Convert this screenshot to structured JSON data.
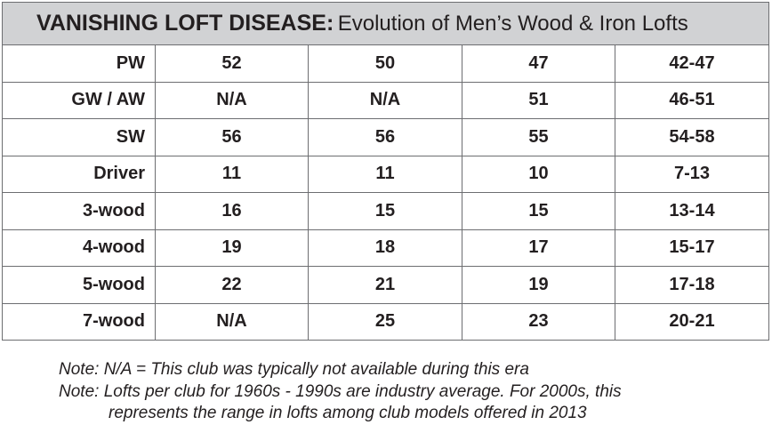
{
  "title": {
    "bold": "VANISHING LOFT DISEASE:",
    "rest": "Evolution of Men’s Wood & Iron Lofts"
  },
  "rows": [
    {
      "club": "PW",
      "values": [
        "52",
        "50",
        "47",
        "42-47"
      ]
    },
    {
      "club": "GW / AW",
      "values": [
        "N/A",
        "N/A",
        "51",
        "46-51"
      ]
    },
    {
      "club": "SW",
      "values": [
        "56",
        "56",
        "55",
        "54-58"
      ]
    },
    {
      "club": "Driver",
      "values": [
        "11",
        "11",
        "10",
        "7-13"
      ]
    },
    {
      "club": "3-wood",
      "values": [
        "16",
        "15",
        "15",
        "13-14"
      ]
    },
    {
      "club": "4-wood",
      "values": [
        "19",
        "18",
        "17",
        "15-17"
      ]
    },
    {
      "club": "5-wood",
      "values": [
        "22",
        "21",
        "19",
        "17-18"
      ]
    },
    {
      "club": "7-wood",
      "values": [
        "N/A",
        "25",
        "23",
        "20-21"
      ]
    }
  ],
  "notes": {
    "line1": "Note:  N/A = This club was typically not available during this era",
    "line2": "Note: Lofts per club for 1960s - 1990s are industry average. For 2000s, this",
    "line3": "represents the range in lofts among club models offered in 2013"
  },
  "colors": {
    "header_bg": "#d1d2d4",
    "border": "#6d6e71",
    "text": "#231f20"
  }
}
